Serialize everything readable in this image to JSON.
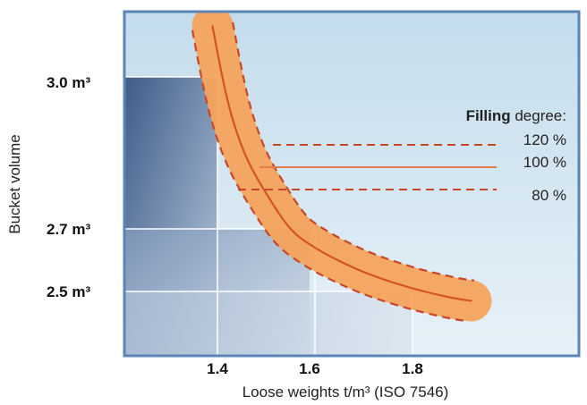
{
  "chart_data": {
    "type": "line",
    "xlabel": "Loose weights t/m³ (ISO 7546)",
    "ylabel": "Bucket volume",
    "x_ticks": [
      "1.4",
      "1.6",
      "1.8"
    ],
    "y_ticks": [
      "3.0 m³",
      "2.7 m³",
      "2.5 m³"
    ],
    "xlim": [
      1.2,
      2.15
    ],
    "ylim": [
      2.35,
      3.15
    ],
    "series": [
      {
        "name": "100 %",
        "x": [
          1.39,
          1.41,
          1.43,
          1.46,
          1.5,
          1.55,
          1.6,
          1.66,
          1.72,
          1.8,
          1.88,
          1.92
        ],
        "y": [
          3.1,
          3.0,
          2.92,
          2.84,
          2.77,
          2.7,
          2.64,
          2.59,
          2.55,
          2.51,
          2.48,
          2.47
        ]
      }
    ],
    "grid": true,
    "legend": {
      "title_bold": "Filling",
      "title_rest": " degree:",
      "entries": [
        "120 %",
        "100 %",
        "80 %"
      ]
    },
    "colors": {
      "band": "#f5a35c",
      "curve": "#d2541e",
      "border": "#5b84b7",
      "plot_bg_top": "#c8e0ee",
      "plot_bg_bottom": "#e6f1f7",
      "step_dark": "#4d6993",
      "step_light": "#c5d3e3"
    }
  }
}
